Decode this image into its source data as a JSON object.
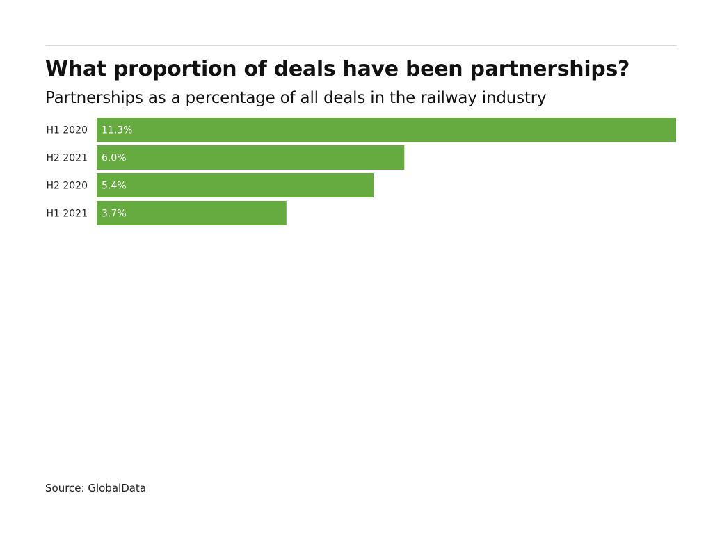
{
  "title": "What proportion of deals have been partnerships?",
  "subtitle": "Partnerships as a percentage of all deals in the railway industry",
  "source": "Source: GlobalData",
  "colors": {
    "bar": "#66ab3f"
  },
  "chart_data": {
    "type": "bar",
    "orientation": "horizontal",
    "categories": [
      "H1 2020",
      "H2 2021",
      "H2 2020",
      "H1 2021"
    ],
    "values": [
      11.3,
      6.0,
      5.4,
      3.7
    ],
    "value_labels": [
      "11.3%",
      "6.0%",
      "5.4%",
      "3.7%"
    ],
    "unit": "%",
    "xlim": [
      0,
      11.3
    ],
    "grid": false,
    "legend": "none"
  }
}
